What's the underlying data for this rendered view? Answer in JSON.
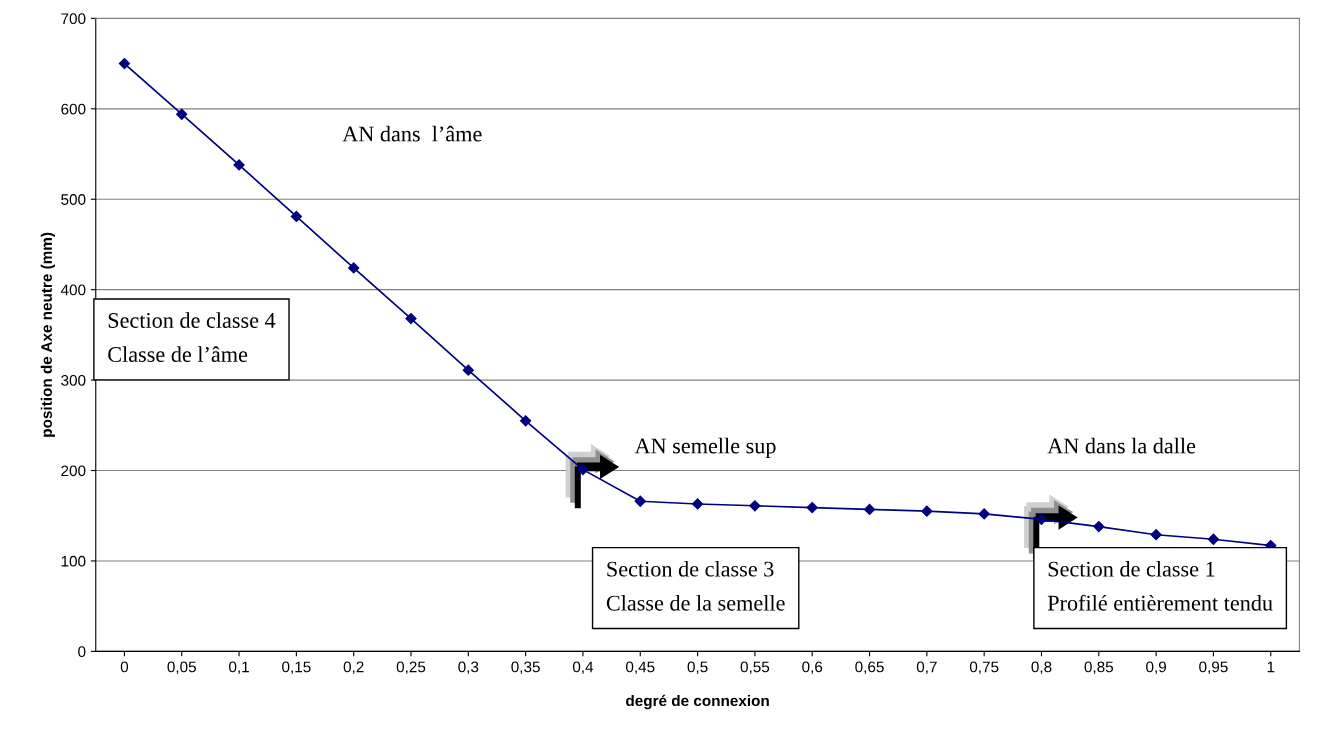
{
  "chart_data": {
    "type": "line",
    "xlabel": "degré de connexion",
    "ylabel": "position de Axe neutre (mm)",
    "categories": [
      "0",
      "0,05",
      "0,1",
      "0,15",
      "0,2",
      "0,25",
      "0,3",
      "0,35",
      "0,4",
      "0,45",
      "0,5",
      "0,55",
      "0,6",
      "0,65",
      "0,7",
      "0,75",
      "0,8",
      "0,85",
      "0,9",
      "0,95",
      "1"
    ],
    "series": [
      {
        "color": "#000080",
        "values": [
          650,
          594,
          538,
          481,
          424,
          368,
          311,
          255,
          201,
          166,
          163,
          161,
          159,
          157,
          155,
          152,
          146,
          138,
          129,
          124,
          117
        ]
      }
    ],
    "ylim": [
      0,
      700
    ],
    "yticks": [
      0,
      100,
      200,
      300,
      400,
      500,
      600,
      700
    ],
    "grid": "y",
    "marker": "diamond",
    "line_style": "solid",
    "legend": false,
    "annotations": [
      "AN dans  l’âme",
      "Section de classe 4\nClasse de l’âme",
      "AN semelle sup",
      "Section de classe 3\nClasse de la semelle",
      "AN dans la dalle",
      "Section de classe 1\nProfilé entièrement tendu"
    ]
  }
}
